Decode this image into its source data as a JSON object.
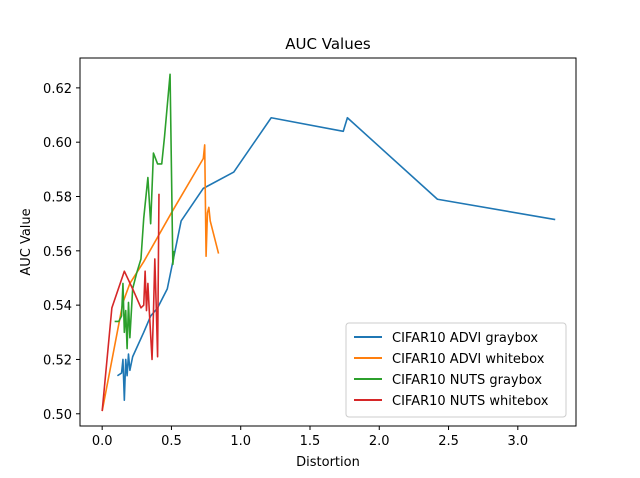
{
  "chart_data": {
    "type": "line",
    "title": "AUC Values",
    "xlabel": "Distortion",
    "ylabel": "AUC Value",
    "xlim": [
      -0.16,
      3.42
    ],
    "ylim": [
      0.4955,
      0.631
    ],
    "xticks": [
      "0.0",
      "0.5",
      "1.0",
      "1.5",
      "2.0",
      "2.5",
      "3.0"
    ],
    "yticks": [
      "0.50",
      "0.52",
      "0.54",
      "0.56",
      "0.58",
      "0.60",
      "0.62"
    ],
    "legend_position": "lower-right",
    "series": [
      {
        "name": "CIFAR10 ADVI graybox",
        "color": "#1f77b4",
        "points": [
          [
            0.11,
            0.514
          ],
          [
            0.14,
            0.515
          ],
          [
            0.15,
            0.52
          ],
          [
            0.16,
            0.505
          ],
          [
            0.17,
            0.52
          ],
          [
            0.18,
            0.514
          ],
          [
            0.19,
            0.522
          ],
          [
            0.2,
            0.516
          ],
          [
            0.22,
            0.521
          ],
          [
            0.3,
            0.53
          ],
          [
            0.35,
            0.536
          ],
          [
            0.4,
            0.539
          ],
          [
            0.47,
            0.546
          ],
          [
            0.57,
            0.571
          ],
          [
            0.73,
            0.583
          ],
          [
            0.95,
            0.589
          ],
          [
            1.22,
            0.609
          ],
          [
            1.74,
            0.604
          ],
          [
            1.77,
            0.609
          ],
          [
            2.42,
            0.579
          ],
          [
            3.27,
            0.5715
          ]
        ]
      },
      {
        "name": "CIFAR10 ADVI whitebox",
        "color": "#ff7f0e",
        "points": [
          [
            0.0,
            0.501
          ],
          [
            0.15,
            0.541
          ],
          [
            0.2,
            0.548
          ],
          [
            0.3,
            0.556
          ],
          [
            0.5,
            0.574
          ],
          [
            0.73,
            0.594
          ],
          [
            0.74,
            0.599
          ],
          [
            0.75,
            0.558
          ],
          [
            0.76,
            0.574
          ],
          [
            0.77,
            0.576
          ],
          [
            0.78,
            0.571
          ],
          [
            0.84,
            0.559
          ]
        ]
      },
      {
        "name": "CIFAR10 NUTS graybox",
        "color": "#2ca02c",
        "points": [
          [
            0.09,
            0.534
          ],
          [
            0.12,
            0.534
          ],
          [
            0.14,
            0.536
          ],
          [
            0.15,
            0.548
          ],
          [
            0.16,
            0.53
          ],
          [
            0.17,
            0.538
          ],
          [
            0.18,
            0.524
          ],
          [
            0.19,
            0.541
          ],
          [
            0.2,
            0.528
          ],
          [
            0.22,
            0.546
          ],
          [
            0.25,
            0.552
          ],
          [
            0.28,
            0.557
          ],
          [
            0.3,
            0.572
          ],
          [
            0.33,
            0.587
          ],
          [
            0.35,
            0.57
          ],
          [
            0.37,
            0.596
          ],
          [
            0.4,
            0.592
          ],
          [
            0.43,
            0.592
          ],
          [
            0.45,
            0.602
          ],
          [
            0.49,
            0.625
          ],
          [
            0.51,
            0.555
          ],
          [
            0.52,
            0.56
          ]
        ]
      },
      {
        "name": "CIFAR10 NUTS whitebox",
        "color": "#d62728",
        "points": [
          [
            0.0,
            0.501
          ],
          [
            0.07,
            0.539
          ],
          [
            0.16,
            0.5525
          ],
          [
            0.22,
            0.546
          ],
          [
            0.28,
            0.539
          ],
          [
            0.3,
            0.54
          ],
          [
            0.31,
            0.5525
          ],
          [
            0.32,
            0.538
          ],
          [
            0.33,
            0.548
          ],
          [
            0.34,
            0.538
          ],
          [
            0.36,
            0.52
          ],
          [
            0.37,
            0.537
          ],
          [
            0.38,
            0.557
          ],
          [
            0.39,
            0.54
          ],
          [
            0.4,
            0.521
          ],
          [
            0.41,
            0.581
          ]
        ]
      }
    ]
  }
}
